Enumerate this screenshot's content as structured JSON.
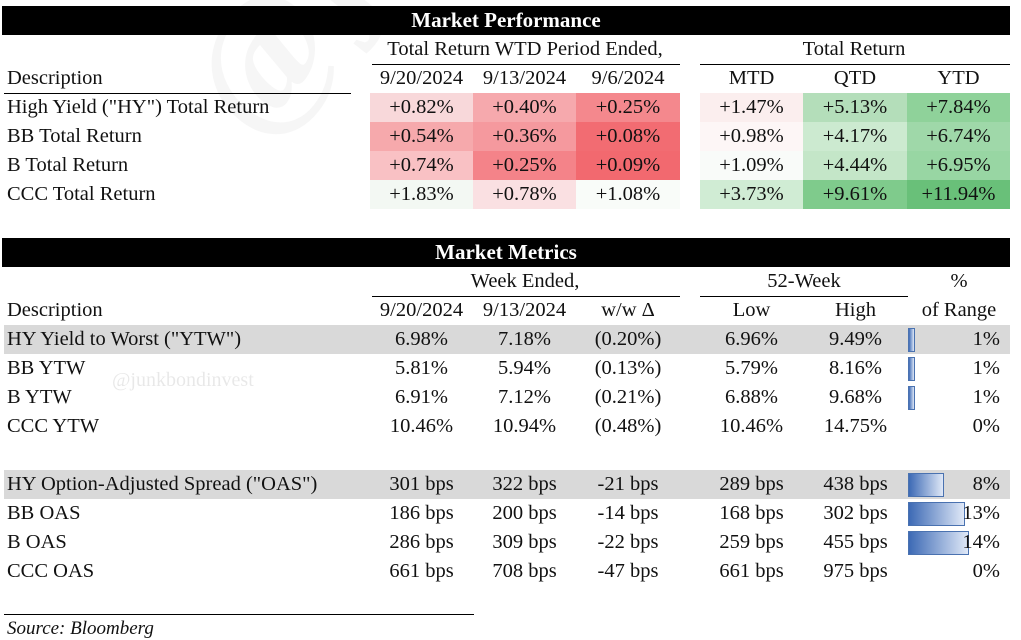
{
  "perf": {
    "title": "Market Performance",
    "group_wtd": "Total Return WTD Period Ended,",
    "group_total": "Total Return",
    "col_desc": "Description",
    "cols": [
      "9/20/2024",
      "9/13/2024",
      "9/6/2024",
      "MTD",
      "QTD",
      "YTD"
    ],
    "rows": [
      {
        "label": "High Yield (\"HY\") Total Return",
        "values": [
          "+0.82%",
          "+0.40%",
          "+0.25%",
          "+1.47%",
          "+5.13%",
          "+7.84%"
        ]
      },
      {
        "label": "BB Total Return",
        "values": [
          "+0.54%",
          "+0.36%",
          "+0.08%",
          "+0.98%",
          "+4.17%",
          "+6.74%"
        ]
      },
      {
        "label": "B Total Return",
        "values": [
          "+0.74%",
          "+0.25%",
          "+0.09%",
          "+1.09%",
          "+4.44%",
          "+6.95%"
        ]
      },
      {
        "label": "CCC Total Return",
        "values": [
          "+1.83%",
          "+0.78%",
          "+1.08%",
          "+3.73%",
          "+9.61%",
          "+11.94%"
        ]
      }
    ],
    "heat": [
      [
        "#f8d8da",
        "#f6a9ad",
        "#f4888d",
        "#fbeeee",
        "#b4deba",
        "#8fd29a"
      ],
      [
        "#f6a9ac",
        "#f5999e",
        "#f26c72",
        "#fdf6f6",
        "#ccead0",
        "#9fd8a9"
      ],
      [
        "#f9c1c4",
        "#f48389",
        "#f2696f",
        "#f9fbf9",
        "#c4e6c8",
        "#98d6a3"
      ],
      [
        "#f3f8f3",
        "#fae0e2",
        "#f9fcf9",
        "#d0ecd4",
        "#7fcb8c",
        "#69c079"
      ]
    ]
  },
  "metrics": {
    "title": "Market Metrics",
    "group_week": "Week Ended,",
    "group_52": "52-Week",
    "pct_top": "%",
    "pct_bottom": "of Range",
    "col_desc": "Description",
    "cols": [
      "9/20/2024",
      "9/13/2024",
      "w/w Δ",
      "Low",
      "High"
    ],
    "rows": [
      {
        "label": "HY Yield to Worst (\"YTW\")",
        "values": [
          "6.98%",
          "7.18%",
          "(0.20%)",
          "6.96%",
          "9.49%"
        ],
        "pct": "1%",
        "fraction": 0.01,
        "shaded": true
      },
      {
        "label": "BB YTW",
        "values": [
          "5.81%",
          "5.94%",
          "(0.13%)",
          "5.79%",
          "8.16%"
        ],
        "pct": "1%",
        "fraction": 0.01,
        "shaded": false
      },
      {
        "label": "B YTW",
        "values": [
          "6.91%",
          "7.12%",
          "(0.21%)",
          "6.88%",
          "9.68%"
        ],
        "pct": "1%",
        "fraction": 0.01,
        "shaded": false
      },
      {
        "label": "CCC YTW",
        "values": [
          "10.46%",
          "10.94%",
          "(0.48%)",
          "10.46%",
          "14.75%"
        ],
        "pct": "0%",
        "fraction": 0.0,
        "shaded": false
      },
      {
        "label": "HY Option-Adjusted Spread (\"OAS\")",
        "values": [
          "301 bps",
          "322 bps",
          "-21 bps",
          "289 bps",
          "438 bps"
        ],
        "pct": "8%",
        "fraction": 0.08,
        "shaded": true
      },
      {
        "label": "BB OAS",
        "values": [
          "186 bps",
          "200 bps",
          "-14 bps",
          "168 bps",
          "302 bps"
        ],
        "pct": "13%",
        "fraction": 0.13,
        "shaded": false
      },
      {
        "label": "B OAS",
        "values": [
          "286 bps",
          "309 bps",
          "-22 bps",
          "259 bps",
          "455 bps"
        ],
        "pct": "14%",
        "fraction": 0.14,
        "shaded": false
      },
      {
        "label": "CCC OAS",
        "values": [
          "661 bps",
          "708 bps",
          "-47 bps",
          "661 bps",
          "975 bps"
        ],
        "pct": "0%",
        "fraction": 0.0,
        "shaded": false
      }
    ]
  },
  "watermark_small": "@junkbondinvest",
  "watermark_large": "@junkbondinvest",
  "source": "Source: Bloomberg"
}
